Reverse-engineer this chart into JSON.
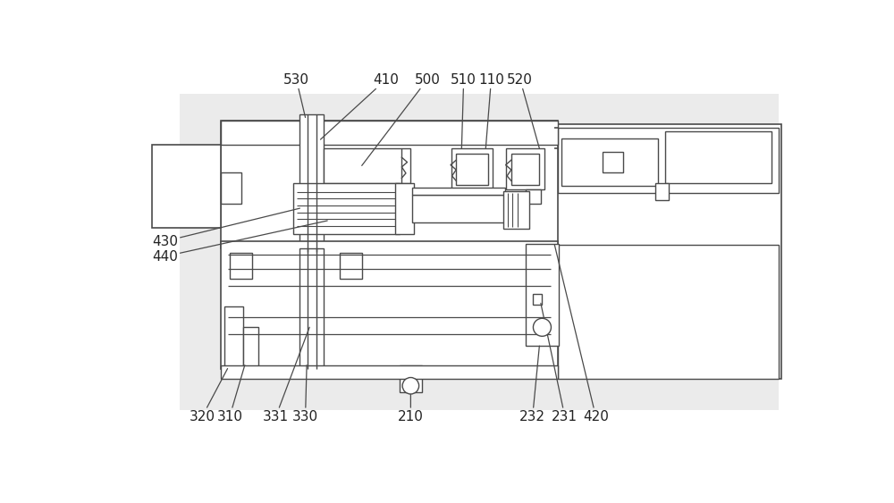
{
  "lc": "#4a4a4a",
  "lw": 1.0,
  "bg": "#e8e8e8",
  "fig_w": 10.0,
  "fig_h": 5.63,
  "dpi": 100
}
